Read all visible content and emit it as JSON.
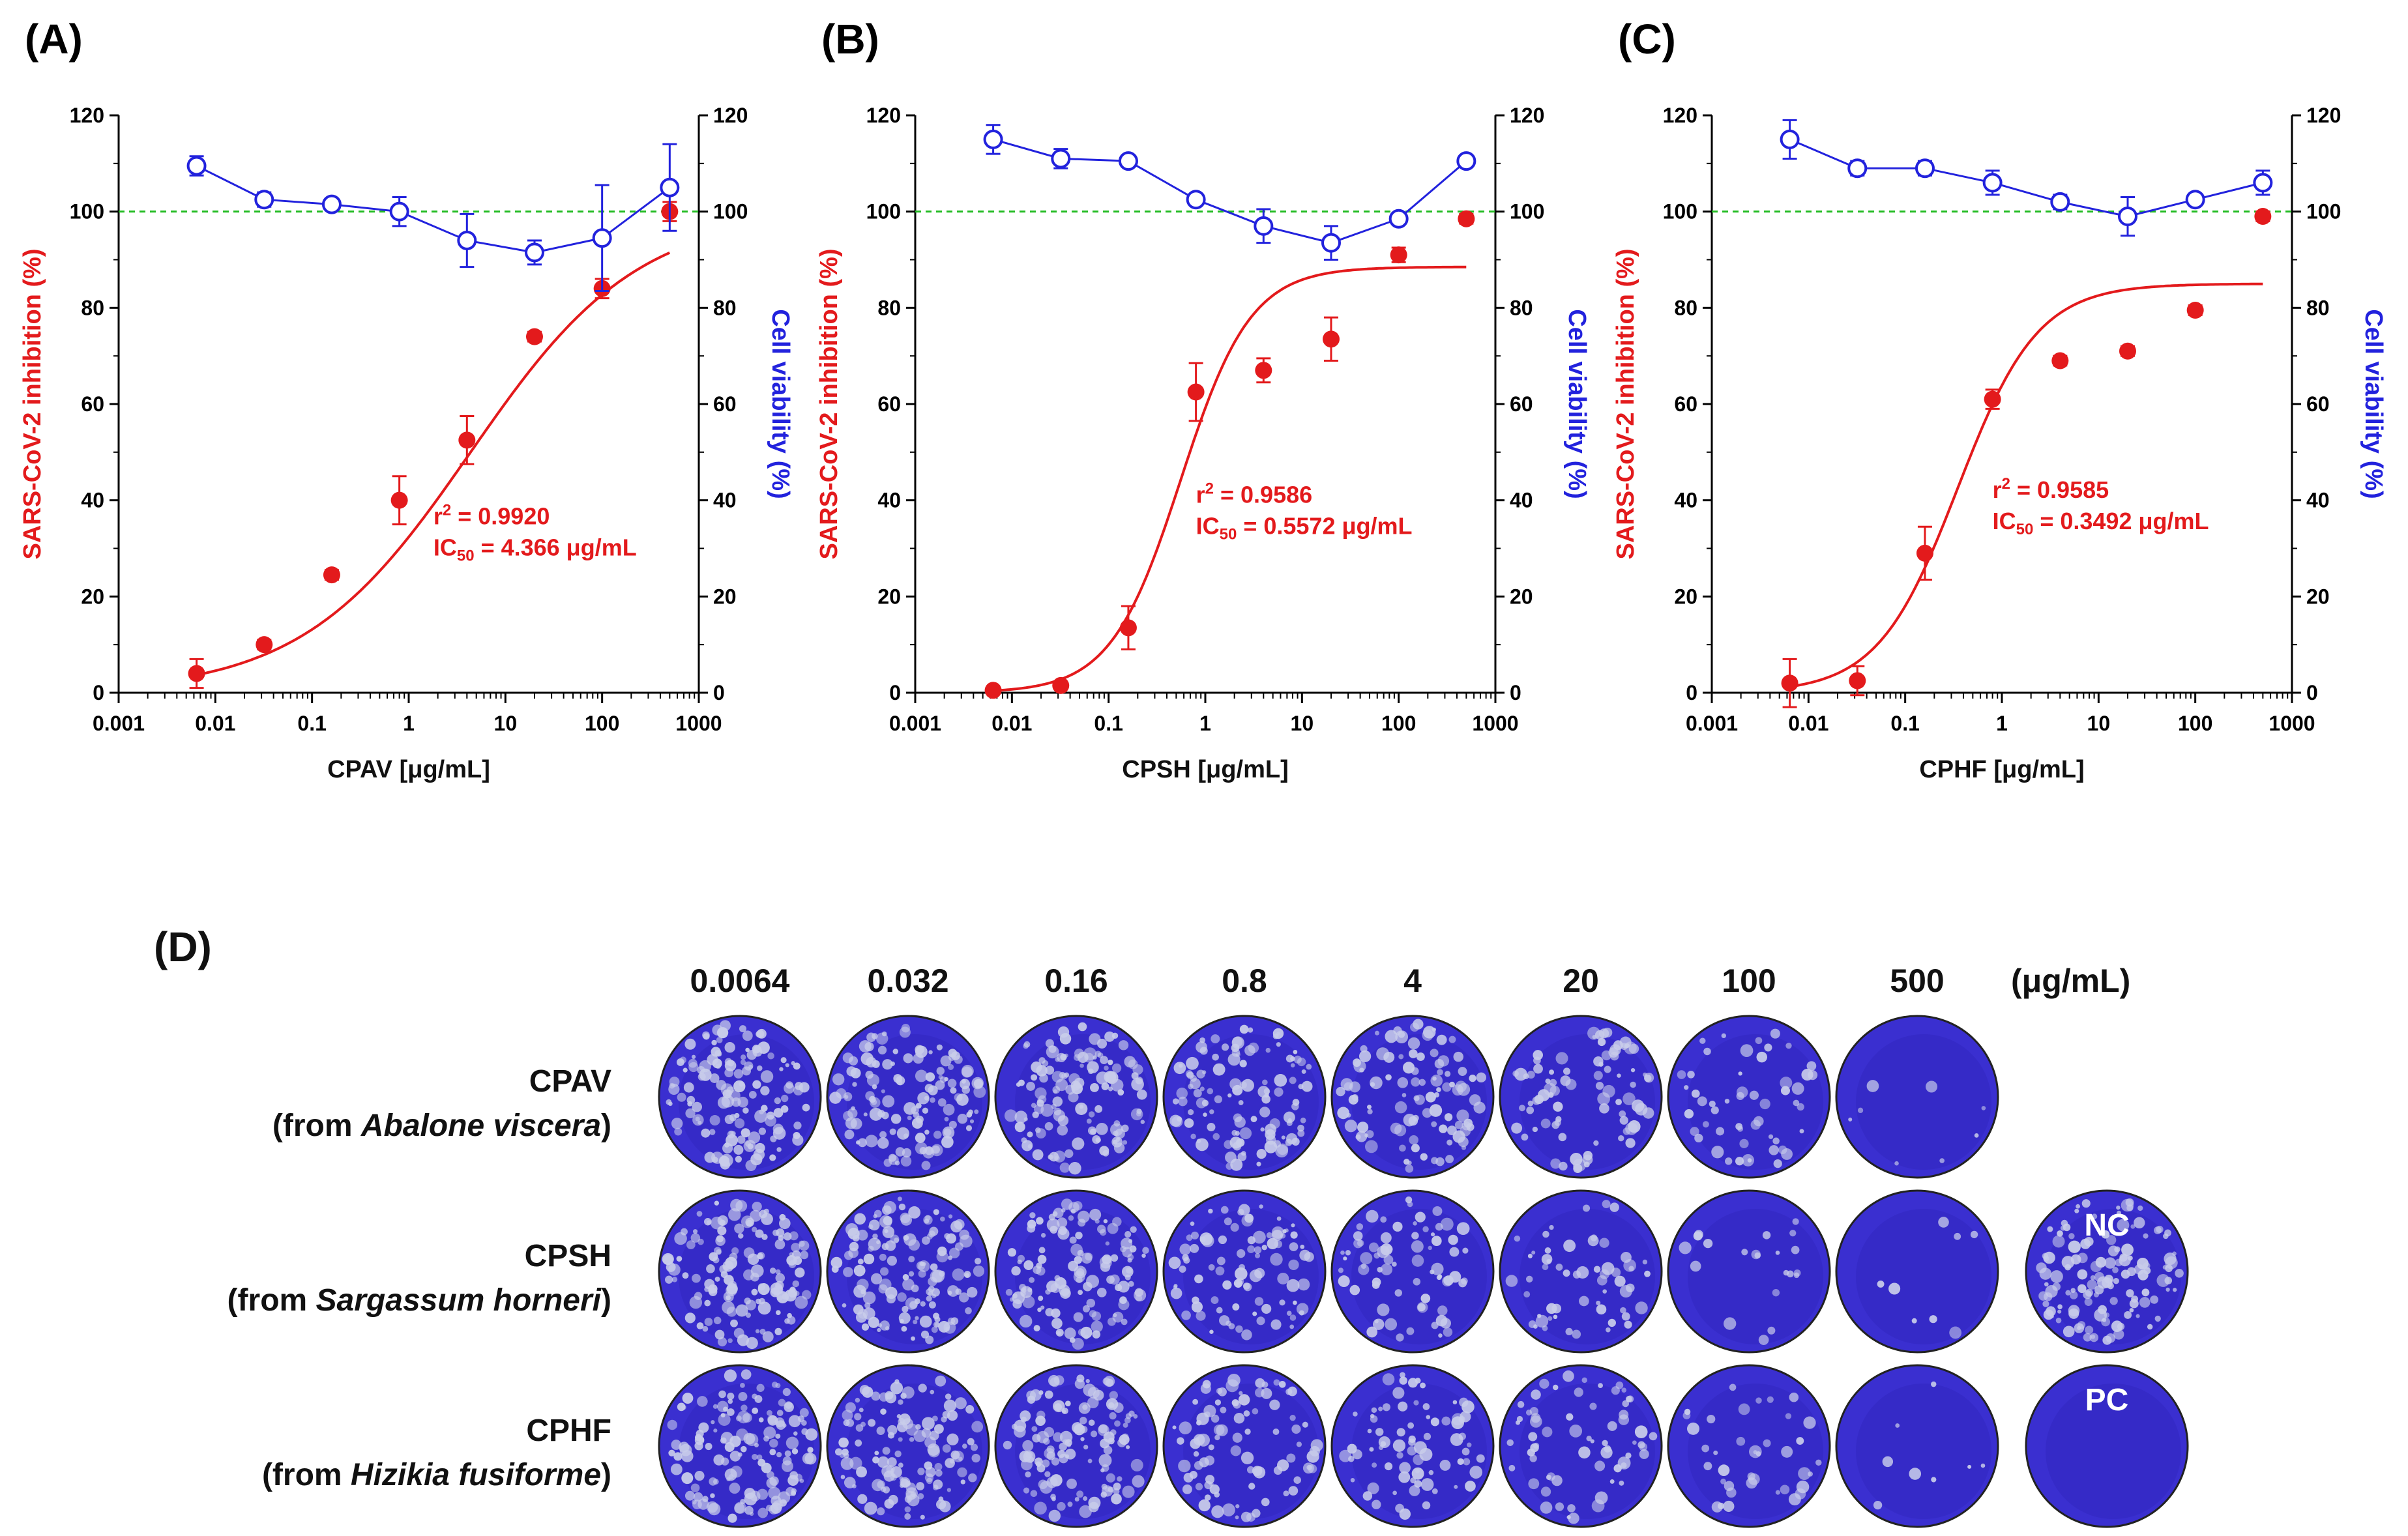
{
  "colors": {
    "inhibition": "#e31a1c",
    "viability": "#2222dd",
    "reference": "#22bb22",
    "well_dark": "#3a2fd0",
    "well_light": "#c9cdea"
  },
  "chart_data": [
    {
      "panel": "(A)",
      "type": "scatter",
      "xlabel": "CPAV [μg/mL]",
      "ylabel_left": "SARS-CoV-2 inhibition (%)",
      "ylabel_right": "Cell viability (%)",
      "x_scale": "log",
      "xlim": [
        0.001,
        1000
      ],
      "x_ticks": [
        "0.001",
        "0.01",
        "0.1",
        "1",
        "10",
        "100",
        "1000"
      ],
      "ylim": [
        0,
        120
      ],
      "y_ticks": [
        "0",
        "20",
        "40",
        "60",
        "80",
        "100",
        "120"
      ],
      "reference_line": 100,
      "x": [
        0.0064,
        0.032,
        0.16,
        0.8,
        4,
        20,
        100,
        500
      ],
      "series": [
        {
          "name": "SARS-CoV-2 inhibition",
          "axis": "left",
          "marker": "filled-circle",
          "values": [
            4,
            10,
            24.5,
            40,
            52.5,
            74,
            84,
            100
          ],
          "errors": [
            3,
            1,
            1,
            5,
            5,
            1,
            2,
            2
          ]
        },
        {
          "name": "Cell viability",
          "axis": "right",
          "marker": "open-circle",
          "values": [
            109.5,
            102.5,
            101.5,
            100,
            94,
            91.5,
            94.5,
            105
          ],
          "errors": [
            2,
            1.5,
            1,
            3,
            5.5,
            2.5,
            11,
            9
          ]
        }
      ],
      "fit": {
        "bottom": 0,
        "top": 100,
        "ic50": 4.366,
        "hill": 0.5
      },
      "r2_label": "r",
      "r2_sup": "2",
      "r2_value": " = 0.9920",
      "ic50_label": "IC",
      "ic50_sub": "50",
      "ic50_value": " = 4.366 μg/mL"
    },
    {
      "panel": "(B)",
      "type": "scatter",
      "xlabel": "CPSH [μg/mL]",
      "ylabel_left": "SARS-CoV-2 inhibition (%)",
      "ylabel_right": "Cell viability (%)",
      "x_scale": "log",
      "xlim": [
        0.001,
        1000
      ],
      "x_ticks": [
        "0.001",
        "0.01",
        "0.1",
        "1",
        "10",
        "100",
        "1000"
      ],
      "ylim": [
        0,
        120
      ],
      "y_ticks": [
        "0",
        "20",
        "40",
        "60",
        "80",
        "100",
        "120"
      ],
      "reference_line": 100,
      "x": [
        0.0064,
        0.032,
        0.16,
        0.8,
        4,
        20,
        100,
        500
      ],
      "series": [
        {
          "name": "SARS-CoV-2 inhibition",
          "axis": "left",
          "marker": "filled-circle",
          "values": [
            0.5,
            1.5,
            13.5,
            62.5,
            67,
            73.5,
            91,
            98.5
          ],
          "errors": [
            0.5,
            0.5,
            4.5,
            6,
            2.5,
            4.5,
            1.5,
            1
          ]
        },
        {
          "name": "Cell viability",
          "axis": "right",
          "marker": "open-circle",
          "values": [
            115,
            111,
            110.5,
            102.5,
            97,
            93.5,
            98.5,
            110.5
          ],
          "errors": [
            3,
            2,
            1,
            1,
            3.5,
            3.5,
            1,
            1
          ]
        }
      ],
      "fit": {
        "bottom": 0,
        "top": 88.5,
        "ic50": 0.5572,
        "hill": 1.2
      },
      "r2_label": "r",
      "r2_sup": "2",
      "r2_value": " = 0.9586",
      "ic50_label": "IC",
      "ic50_sub": "50",
      "ic50_value": " = 0.5572 μg/mL"
    },
    {
      "panel": "(C)",
      "type": "scatter",
      "xlabel": "CPHF [μg/mL]",
      "ylabel_left": "SARS-CoV-2 inhibition (%)",
      "ylabel_right": "Cell viability (%)",
      "x_scale": "log",
      "xlim": [
        0.001,
        1000
      ],
      "x_ticks": [
        "0.001",
        "0.01",
        "0.1",
        "1",
        "10",
        "100",
        "1000"
      ],
      "ylim": [
        0,
        120
      ],
      "y_ticks": [
        "0",
        "20",
        "40",
        "60",
        "80",
        "100",
        "120"
      ],
      "reference_line": 100,
      "x": [
        0.0064,
        0.032,
        0.16,
        0.8,
        4,
        20,
        100,
        500
      ],
      "series": [
        {
          "name": "SARS-CoV-2 inhibition",
          "axis": "left",
          "marker": "filled-circle",
          "values": [
            2,
            2.5,
            29,
            61,
            69,
            71,
            79.5,
            99
          ],
          "errors": [
            5,
            3,
            5.5,
            2,
            1,
            1,
            1,
            1
          ]
        },
        {
          "name": "Cell viability",
          "axis": "right",
          "marker": "open-circle",
          "values": [
            115,
            109,
            109,
            106,
            102,
            99,
            102.5,
            106
          ],
          "errors": [
            4,
            1.5,
            1.5,
            2.5,
            1.5,
            4,
            1,
            2.5
          ]
        }
      ],
      "fit": {
        "bottom": 0,
        "top": 85,
        "ic50": 0.3492,
        "hill": 1.05
      },
      "r2_label": "r",
      "r2_sup": "2",
      "r2_value": " = 0.9585",
      "ic50_label": "IC",
      "ic50_sub": "50",
      "ic50_value": " = 0.3492 μg/mL"
    }
  ],
  "plaque_assay": {
    "panel": "(D)",
    "concentrations": [
      "0.0064",
      "0.032",
      "0.16",
      "0.8",
      "4",
      "20",
      "100",
      "500"
    ],
    "unit": "(μg/mL)",
    "rows": [
      {
        "name": "CPAV",
        "source_prefix": "(from ",
        "source": "Abalone viscera",
        "source_suffix": ")",
        "plaque_density": [
          0.55,
          0.5,
          0.5,
          0.45,
          0.4,
          0.32,
          0.2,
          0.03
        ]
      },
      {
        "name": "CPSH",
        "source_prefix": "(from ",
        "source": "Sargassum horneri",
        "source_suffix": ")",
        "plaque_density": [
          0.55,
          0.55,
          0.5,
          0.35,
          0.28,
          0.22,
          0.08,
          0.03
        ]
      },
      {
        "name": "CPHF",
        "source_prefix": "(from ",
        "source": "Hizikia fusiforme",
        "source_suffix": ")",
        "plaque_density": [
          0.55,
          0.5,
          0.5,
          0.35,
          0.3,
          0.25,
          0.15,
          0.03
        ]
      }
    ],
    "controls": [
      {
        "label": "NC",
        "plaque_density": 0.5
      },
      {
        "label": "PC",
        "plaque_density": 0.0
      }
    ]
  }
}
